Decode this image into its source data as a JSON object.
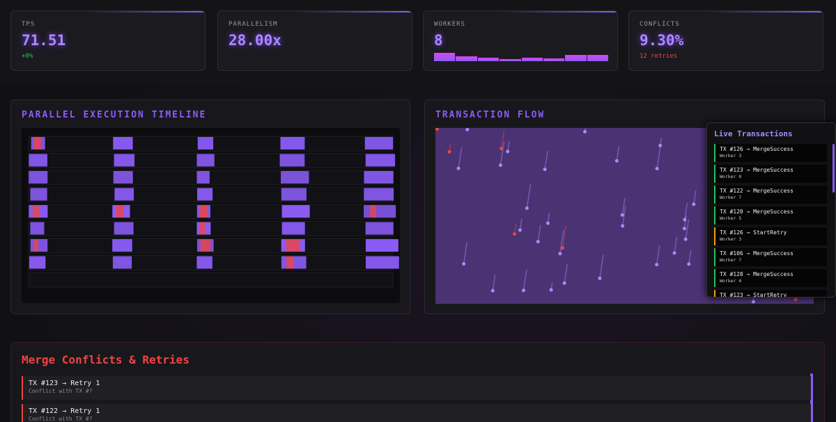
{
  "stats": [
    {
      "label": "TPS",
      "value": "71.51",
      "sub": "+0%"
    },
    {
      "label": "PARALLELISM",
      "value": "28.00x"
    },
    {
      "label": "WORKERS",
      "value": "8"
    },
    {
      "label": "CONFLICTS",
      "value": "9.30%",
      "sub": "12 retries"
    }
  ],
  "timeline": {
    "title": "PARALLEL EXECUTION TIMELINE"
  },
  "flow": {
    "title": "TRANSACTION FLOW"
  },
  "live": {
    "title": "Live Transactions",
    "items": [
      {
        "tx": "TX #126 → MergeSuccess",
        "worker": "Worker 3",
        "color": "#22c55e"
      },
      {
        "tx": "TX #123 → MergeSuccess",
        "worker": "Worker 0",
        "color": "#22c55e"
      },
      {
        "tx": "TX #122 → MergeSuccess",
        "worker": "Worker 7",
        "color": "#22c55e"
      },
      {
        "tx": "TX #120 → MergeSuccess",
        "worker": "Worker 5",
        "color": "#22c55e"
      },
      {
        "tx": "TX #126 → StartRetry",
        "worker": "Worker 3",
        "color": "#f59e0b"
      },
      {
        "tx": "TX #106 → MergeSuccess",
        "worker": "Worker 7",
        "color": "#22c55e"
      },
      {
        "tx": "TX #128 → MergeSuccess",
        "worker": "Worker 4",
        "color": "#22c55e"
      },
      {
        "tx": "TX #123 → StartRetry",
        "color": "#f59e0b"
      }
    ]
  },
  "conflicts": {
    "title": "Merge Conflicts & Retries",
    "items": [
      {
        "title": "TX #123 → Retry 1",
        "detail": "Conflict with TX #?"
      },
      {
        "title": "TX #122 → Retry 1",
        "detail": "Conflict with TX #?"
      }
    ]
  }
}
